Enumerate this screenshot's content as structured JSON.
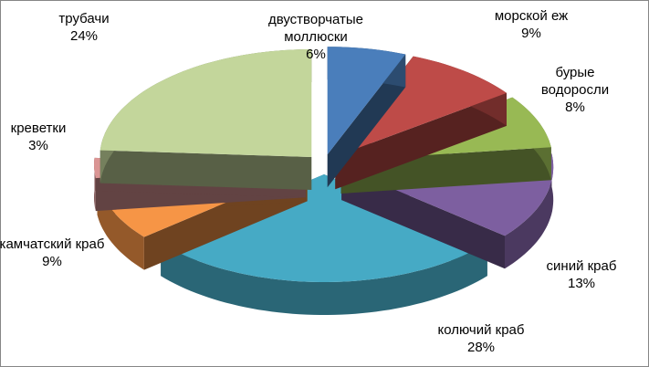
{
  "chart_data": {
    "type": "pie",
    "categories": [
      "двустворчатые моллюски",
      "морской еж",
      "бурые водоросли",
      "синий краб",
      "колючий краб",
      "камчатский краб",
      "креветки",
      "трубачи"
    ],
    "values": [
      6,
      9,
      8,
      13,
      28,
      9,
      3,
      24
    ],
    "value_labels": [
      "6%",
      "9%",
      "8%",
      "13%",
      "28%",
      "9%",
      "3%",
      "24%"
    ],
    "colors": [
      "#4a7ebb",
      "#be4b48",
      "#98b954",
      "#7d5fa0",
      "#46aac5",
      "#f69546",
      "#da9594",
      "#c3d69b"
    ]
  }
}
